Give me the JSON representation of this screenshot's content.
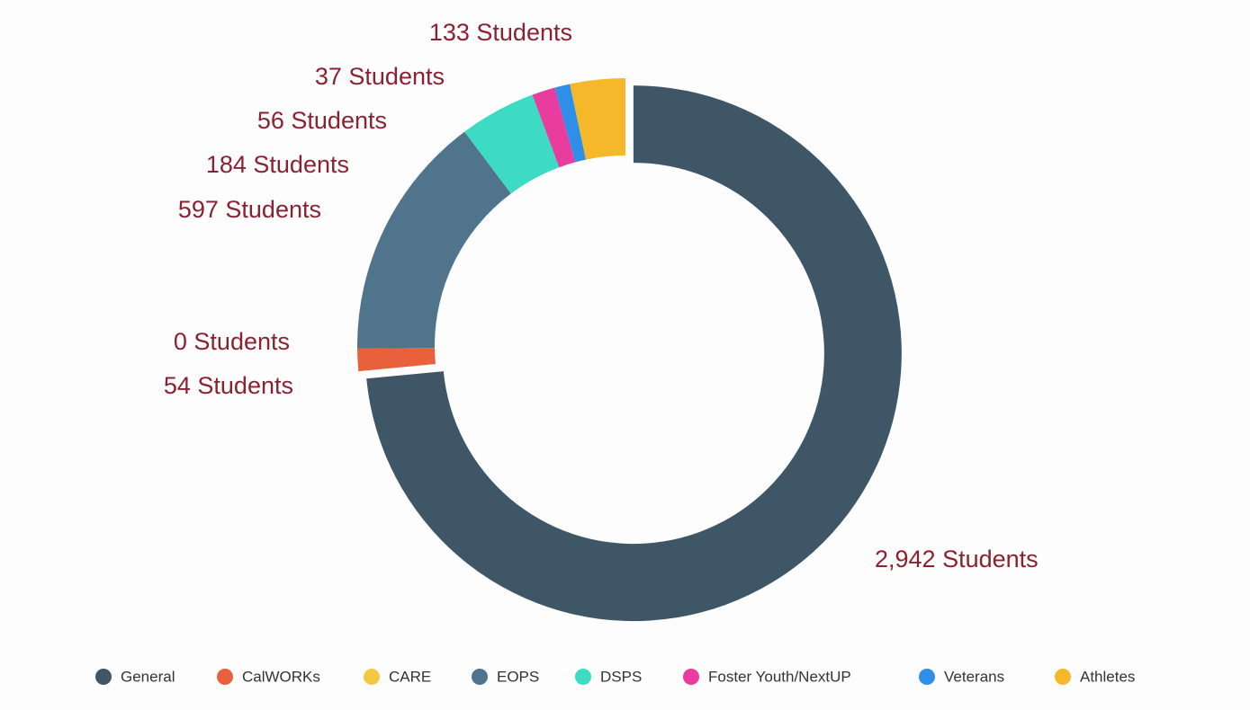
{
  "chart_data": {
    "type": "donut",
    "categories": [
      "General",
      "CalWORKs",
      "CARE",
      "EOPS",
      "DSPS",
      "Foster Youth/NextUP",
      "Veterans",
      "Athletes"
    ],
    "values": [
      2942,
      54,
      0,
      597,
      184,
      56,
      37,
      133
    ],
    "value_labels": [
      "2,942 Students",
      "54 Students",
      "0 Students",
      "597 Students",
      "184 Students",
      "56 Students",
      "37 Students",
      "133 Students"
    ],
    "colors": [
      "#3f5666",
      "#e8603c",
      "#f5c842",
      "#50748c",
      "#3ddbc4",
      "#e83d9e",
      "#2f8fe8",
      "#f5b82a"
    ],
    "legend": "bottom"
  }
}
